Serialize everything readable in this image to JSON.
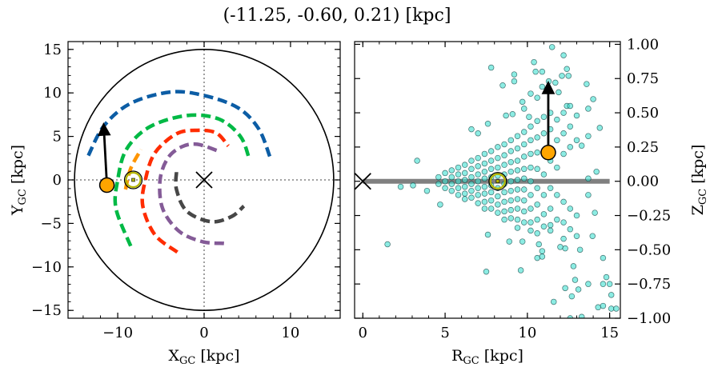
{
  "title": "(-11.25, -0.60, 0.21) [kpc]",
  "colors": {
    "arc_blue": "#0c5da5",
    "arc_green": "#00b945",
    "arc_orange": "#ff9500",
    "arc_red": "#ff2c00",
    "arc_purple": "#845b97",
    "arc_gray": "#474747",
    "star": "#ffa500",
    "sun_ring": "#b5b500",
    "scatter_fill": "#40e0d0",
    "zero_line": "#808080"
  },
  "chart_data": [
    {
      "type": "line",
      "panel": "left",
      "xlabel": {
        "main": "X",
        "sub": "GC",
        "unit": " [kpc]"
      },
      "ylabel": {
        "main": "Y",
        "sub": "GC",
        "unit": " [kpc]"
      },
      "xlim": [
        -15.75,
        15.75
      ],
      "ylim": [
        -15.9,
        15.9
      ],
      "xticks": [
        -10,
        0,
        10
      ],
      "xtick_labels": [
        "−10",
        "0",
        "10"
      ],
      "yticks": [
        -15,
        -10,
        -5,
        0,
        5,
        10,
        15
      ],
      "ytick_labels": [
        "−15",
        "−10",
        "−5",
        "0",
        "5",
        "10",
        "15"
      ],
      "xminor_step": 2,
      "yminor_step": 1,
      "boundary_circle_radius": 15,
      "reference_lines": "dotted x=0 and y=0",
      "galactic_center": [
        0,
        0
      ],
      "sun": [
        -8.2,
        0
      ],
      "star": [
        -11.25,
        -0.6
      ],
      "star_velocity_arrow_tip": [
        -11.6,
        6.4
      ],
      "series": [
        {
          "color": "arc_blue",
          "points": [
            [
              -13.4,
              2.8
            ],
            [
              -11.6,
              6.2
            ],
            [
              -8.5,
              8.8
            ],
            [
              -3.9,
              10.1
            ],
            [
              0,
              9.7
            ],
            [
              3.9,
              8.3
            ],
            [
              6.3,
              5.9
            ],
            [
              7.6,
              2.7
            ]
          ]
        },
        {
          "color": "arc_green",
          "points": [
            [
              -8.5,
              -7.6
            ],
            [
              -10.2,
              -3.3
            ],
            [
              -10.0,
              0
            ],
            [
              -9.0,
              3.5
            ],
            [
              -6.3,
              6.1
            ],
            [
              -2.0,
              7.4
            ],
            [
              1.7,
              7.0
            ],
            [
              4.2,
              5.0
            ],
            [
              5.2,
              2.5
            ]
          ]
        },
        {
          "color": "arc_orange",
          "points": [
            [
              -9.1,
              -1.1
            ],
            [
              -8.5,
              1.3
            ],
            [
              -7.3,
              3.5
            ]
          ]
        },
        {
          "color": "arc_red",
          "points": [
            [
              -3.1,
              -8.3
            ],
            [
              -5.7,
              -6.3
            ],
            [
              -7.1,
              -3.0
            ],
            [
              -6.8,
              0
            ],
            [
              -5.7,
              3.1
            ],
            [
              -3.2,
              5.3
            ],
            [
              -0.8,
              5.7
            ],
            [
              1.4,
              5.4
            ],
            [
              2.8,
              3.9
            ]
          ]
        },
        {
          "color": "arc_purple",
          "points": [
            [
              2.3,
              -7.3
            ],
            [
              -0.2,
              -7.1
            ],
            [
              -2.9,
              -5.9
            ],
            [
              -4.8,
              -3.3
            ],
            [
              -5.1,
              0
            ],
            [
              -4.2,
              2.5
            ],
            [
              -2.6,
              3.8
            ],
            [
              -0.8,
              4.1
            ],
            [
              1.7,
              3.3
            ]
          ]
        },
        {
          "color": "arc_gray",
          "points": [
            [
              -3.2,
              0.9
            ],
            [
              -3.2,
              -1.1
            ],
            [
              -2.0,
              -3.6
            ],
            [
              0.8,
              -4.8
            ],
            [
              3.2,
              -4.2
            ],
            [
              4.6,
              -3.0
            ]
          ]
        }
      ]
    },
    {
      "type": "scatter",
      "panel": "right",
      "xlabel": {
        "main": "R",
        "sub": "GC",
        "unit": " [kpc]"
      },
      "ylabel": {
        "main": "Z",
        "sub": "GC",
        "unit": " [kpc]"
      },
      "ylabel_side": "right",
      "xlim": [
        -0.5,
        15.65
      ],
      "ylim": [
        -1.0,
        1.02
      ],
      "xticks": [
        0,
        5,
        10,
        15
      ],
      "xtick_labels": [
        "0",
        "5",
        "10",
        "15"
      ],
      "yticks": [
        -1.0,
        -0.75,
        -0.5,
        -0.25,
        0,
        0.25,
        0.5,
        0.75,
        1.0
      ],
      "ytick_labels": [
        "−1.00",
        "−0.75",
        "−0.50",
        "−0.25",
        "0.00",
        "0.25",
        "0.50",
        "0.75",
        "1.00"
      ],
      "xminor_step": 1,
      "galactic_center": [
        0,
        0
      ],
      "disk_line": [
        [
          0,
          0
        ],
        [
          15,
          0
        ]
      ],
      "sun": [
        8.2,
        0
      ],
      "star": [
        11.27,
        0.21
      ],
      "star_velocity_arrow_tip": [
        11.27,
        0.72
      ],
      "points": [
        [
          11.5,
          0.98
        ],
        [
          12.2,
          0.92
        ],
        [
          10.4,
          0.87
        ],
        [
          7.8,
          0.83
        ],
        [
          10.5,
          0.8
        ],
        [
          10.9,
          0.8
        ],
        [
          12.4,
          0.82
        ],
        [
          12.1,
          0.77
        ],
        [
          12.5,
          0.77
        ],
        [
          9.2,
          0.78
        ],
        [
          9.2,
          0.73
        ],
        [
          8.5,
          0.7
        ],
        [
          11.3,
          0.73
        ],
        [
          11.7,
          0.72
        ],
        [
          13.6,
          0.71
        ],
        [
          10.9,
          0.69
        ],
        [
          11.9,
          0.65
        ],
        [
          10.2,
          0.64
        ],
        [
          14.0,
          0.6
        ],
        [
          9.7,
          0.58
        ],
        [
          10.6,
          0.61
        ],
        [
          9.8,
          0.53
        ],
        [
          12.4,
          0.55
        ],
        [
          13.7,
          0.53
        ],
        [
          9.1,
          0.49
        ],
        [
          8.7,
          0.48
        ],
        [
          10.1,
          0.47
        ],
        [
          14.4,
          0.39
        ],
        [
          7.6,
          0.42
        ],
        [
          6.6,
          0.38
        ],
        [
          7.0,
          0.35
        ],
        [
          3.3,
          0.15
        ],
        [
          13.7,
          0.33
        ],
        [
          13.3,
          0.26
        ],
        [
          14.2,
          0.07
        ],
        [
          13.7,
          0.02
        ],
        [
          2.3,
          -0.04
        ],
        [
          3.05,
          -0.03
        ],
        [
          3.9,
          -0.07
        ],
        [
          1.5,
          -0.46
        ],
        [
          4.7,
          -0.17
        ],
        [
          7.6,
          -0.39
        ],
        [
          7.5,
          -0.66
        ],
        [
          9.6,
          -0.65
        ],
        [
          14.1,
          -0.23
        ],
        [
          13.7,
          -0.1
        ],
        [
          13.96,
          -0.4
        ],
        [
          14.6,
          -0.56
        ],
        [
          12.3,
          -0.49
        ],
        [
          13.2,
          -0.5
        ],
        [
          12.8,
          -0.62
        ],
        [
          12.9,
          -0.72
        ],
        [
          14.8,
          -0.7
        ],
        [
          13.7,
          -0.75
        ],
        [
          12.3,
          -0.78
        ],
        [
          13.1,
          -0.79
        ],
        [
          14.6,
          -0.75
        ],
        [
          15.0,
          -0.75
        ],
        [
          12.7,
          -0.84
        ],
        [
          15.1,
          -0.83
        ],
        [
          11.6,
          -0.88
        ],
        [
          14.3,
          -0.92
        ],
        [
          14.6,
          -0.91
        ],
        [
          15.1,
          -0.93
        ],
        [
          15.4,
          -0.93
        ],
        [
          12.6,
          -1.0
        ],
        [
          13.3,
          -0.99
        ],
        [
          10.6,
          -0.56
        ],
        [
          10.9,
          -0.55
        ],
        [
          8.9,
          -0.44
        ],
        [
          9.7,
          -0.44
        ],
        [
          11.4,
          -0.36
        ],
        [
          12.0,
          -0.48
        ],
        [
          10.7,
          -0.46
        ],
        [
          10.9,
          -0.51
        ],
        [
          4.6,
          0.03
        ],
        [
          4.6,
          -0.02
        ],
        [
          5.0,
          0.06
        ],
        [
          5.0,
          0.0
        ],
        [
          5.0,
          -0.05
        ],
        [
          5.4,
          0.08
        ],
        [
          5.4,
          0.03
        ],
        [
          5.4,
          -0.02
        ],
        [
          5.4,
          -0.07
        ],
        [
          5.8,
          0.1
        ],
        [
          5.8,
          0.05
        ],
        [
          5.8,
          0.0
        ],
        [
          5.8,
          -0.05
        ],
        [
          5.8,
          -0.1
        ],
        [
          6.2,
          0.12
        ],
        [
          6.2,
          0.06
        ],
        [
          6.2,
          0.01
        ],
        [
          6.2,
          -0.04
        ],
        [
          6.2,
          -0.09
        ],
        [
          6.2,
          -0.13
        ],
        [
          6.6,
          0.15
        ],
        [
          6.6,
          0.09
        ],
        [
          6.6,
          0.03
        ],
        [
          6.6,
          -0.02
        ],
        [
          6.6,
          -0.07
        ],
        [
          6.6,
          -0.12
        ],
        [
          7.0,
          0.17
        ],
        [
          7.0,
          0.11
        ],
        [
          7.0,
          0.05
        ],
        [
          7.0,
          0.0
        ],
        [
          7.0,
          -0.05
        ],
        [
          7.0,
          -0.1
        ],
        [
          7.0,
          -0.16
        ],
        [
          7.4,
          0.2
        ],
        [
          7.4,
          0.13
        ],
        [
          7.4,
          0.07
        ],
        [
          7.4,
          0.02
        ],
        [
          7.4,
          -0.04
        ],
        [
          7.4,
          -0.09
        ],
        [
          7.4,
          -0.15
        ],
        [
          7.4,
          -0.2
        ],
        [
          7.8,
          0.22
        ],
        [
          7.8,
          0.15
        ],
        [
          7.8,
          0.09
        ],
        [
          7.8,
          0.03
        ],
        [
          7.8,
          -0.03
        ],
        [
          7.8,
          -0.08
        ],
        [
          7.8,
          -0.14
        ],
        [
          7.8,
          -0.2
        ],
        [
          8.2,
          0.25
        ],
        [
          8.2,
          0.17
        ],
        [
          8.2,
          0.1
        ],
        [
          8.2,
          0.04
        ],
        [
          8.2,
          -0.05
        ],
        [
          8.2,
          -0.11
        ],
        [
          8.2,
          -0.17
        ],
        [
          8.2,
          -0.23
        ],
        [
          8.6,
          0.27
        ],
        [
          8.6,
          0.19
        ],
        [
          8.6,
          0.12
        ],
        [
          8.6,
          0.05
        ],
        [
          8.6,
          -0.02
        ],
        [
          8.6,
          -0.08
        ],
        [
          8.6,
          -0.15
        ],
        [
          8.6,
          -0.22
        ],
        [
          8.6,
          -0.28
        ],
        [
          9.0,
          0.3
        ],
        [
          9.0,
          0.22
        ],
        [
          9.0,
          0.14
        ],
        [
          9.0,
          0.07
        ],
        [
          9.0,
          0.0
        ],
        [
          9.0,
          -0.07
        ],
        [
          9.0,
          -0.14
        ],
        [
          9.0,
          -0.21
        ],
        [
          9.0,
          -0.27
        ],
        [
          9.4,
          0.33
        ],
        [
          9.4,
          0.24
        ],
        [
          9.4,
          0.15
        ],
        [
          9.4,
          0.08
        ],
        [
          9.4,
          0.01
        ],
        [
          9.4,
          -0.06
        ],
        [
          9.4,
          -0.13
        ],
        [
          9.4,
          -0.2
        ],
        [
          9.4,
          -0.28
        ],
        [
          9.4,
          -0.34
        ],
        [
          9.8,
          0.36
        ],
        [
          9.8,
          0.27
        ],
        [
          9.8,
          0.18
        ],
        [
          9.8,
          0.09
        ],
        [
          9.8,
          0.02
        ],
        [
          9.8,
          -0.06
        ],
        [
          9.8,
          -0.14
        ],
        [
          9.8,
          -0.22
        ],
        [
          9.8,
          -0.3
        ],
        [
          10.2,
          0.4
        ],
        [
          10.2,
          0.3
        ],
        [
          10.2,
          0.2
        ],
        [
          10.2,
          0.1
        ],
        [
          10.2,
          0.0
        ],
        [
          10.2,
          -0.1
        ],
        [
          10.2,
          -0.2
        ],
        [
          10.2,
          -0.3
        ],
        [
          10.2,
          -0.36
        ],
        [
          10.6,
          0.44
        ],
        [
          10.6,
          0.32
        ],
        [
          10.6,
          0.21
        ],
        [
          10.6,
          0.09
        ],
        [
          10.6,
          -0.05
        ],
        [
          10.6,
          -0.17
        ],
        [
          10.6,
          -0.28
        ],
        [
          10.6,
          -0.38
        ],
        [
          11.0,
          0.47
        ],
        [
          11.0,
          0.35
        ],
        [
          11.0,
          0.2
        ],
        [
          11.0,
          0.05
        ],
        [
          11.0,
          -0.1
        ],
        [
          11.0,
          -0.24
        ],
        [
          11.0,
          -0.33
        ],
        [
          11.4,
          0.5
        ],
        [
          11.4,
          0.38
        ],
        [
          11.4,
          0.15
        ],
        [
          11.4,
          -0.05
        ],
        [
          11.4,
          -0.2
        ],
        [
          11.4,
          -0.32
        ],
        [
          11.8,
          0.45
        ],
        [
          11.8,
          0.3
        ],
        [
          11.8,
          0.1
        ],
        [
          11.8,
          -0.1
        ],
        [
          11.8,
          -0.28
        ],
        [
          12.2,
          0.5
        ],
        [
          12.2,
          0.35
        ],
        [
          12.2,
          0.2
        ],
        [
          12.2,
          -0.15
        ],
        [
          12.2,
          -0.3
        ],
        [
          12.2,
          -0.42
        ],
        [
          12.6,
          0.55
        ],
        [
          12.6,
          0.4
        ],
        [
          12.6,
          0.25
        ],
        [
          12.6,
          -0.2
        ],
        [
          12.6,
          -0.35
        ],
        [
          13.0,
          0.48
        ],
        [
          13.0,
          0.3
        ],
        [
          13.0,
          -0.25
        ],
        [
          13.0,
          -0.4
        ]
      ]
    }
  ]
}
